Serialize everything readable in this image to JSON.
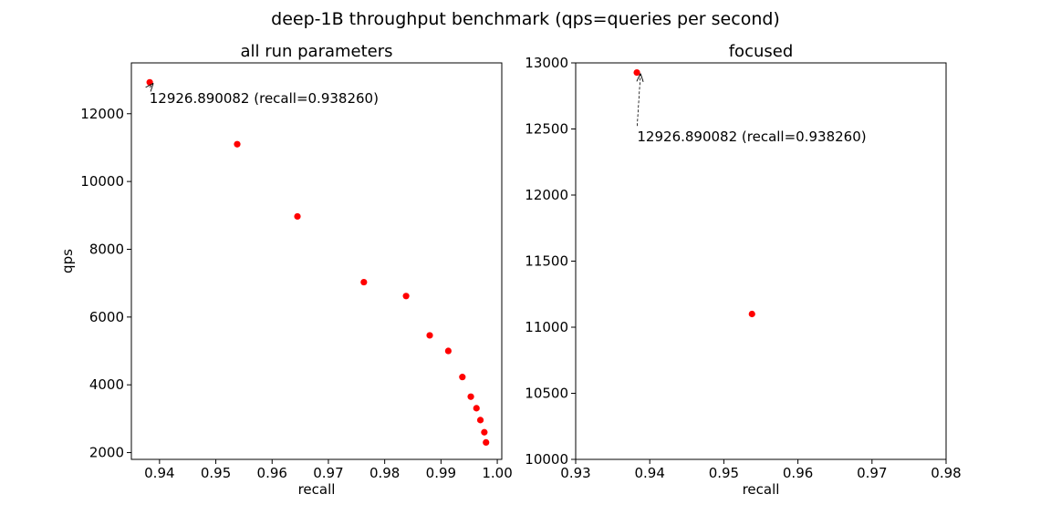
{
  "figure": {
    "title": "deep-1B throughput benchmark (qps=queries per second)"
  },
  "chart_data": [
    {
      "type": "scatter",
      "title": "all run parameters",
      "xlabel": "recall",
      "ylabel": "qps",
      "xlim": [
        0.935,
        1.0008
      ],
      "ylim": [
        1800,
        13500
      ],
      "xticks": [
        0.94,
        0.95,
        0.96,
        0.97,
        0.98,
        0.99,
        1.0
      ],
      "xtick_labels": [
        "0.94",
        "0.95",
        "0.96",
        "0.97",
        "0.98",
        "0.99",
        "1.00"
      ],
      "yticks": [
        2000,
        4000,
        6000,
        8000,
        10000,
        12000
      ],
      "ytick_labels": [
        "2000",
        "4000",
        "6000",
        "8000",
        "10000",
        "12000"
      ],
      "points": [
        {
          "x": 0.93826,
          "y": 12926.890082
        },
        {
          "x": 0.9538,
          "y": 11100
        },
        {
          "x": 0.9645,
          "y": 8970
        },
        {
          "x": 0.9763,
          "y": 7030
        },
        {
          "x": 0.9838,
          "y": 6620
        },
        {
          "x": 0.988,
          "y": 5460
        },
        {
          "x": 0.9913,
          "y": 5000
        },
        {
          "x": 0.9938,
          "y": 4230
        },
        {
          "x": 0.9953,
          "y": 3650
        },
        {
          "x": 0.9963,
          "y": 3310
        },
        {
          "x": 0.997,
          "y": 2960
        },
        {
          "x": 0.9977,
          "y": 2600
        },
        {
          "x": 0.998,
          "y": 2300
        }
      ],
      "color": "#ff0000",
      "annotation": {
        "text": "12926.890082 (recall=0.938260)",
        "target": {
          "x": 0.93826,
          "y": 12926.890082
        },
        "text_at": {
          "x": 0.9382,
          "y": 12450
        }
      }
    },
    {
      "type": "scatter",
      "title": "focused",
      "xlabel": "recall",
      "ylabel": "",
      "xlim": [
        0.93,
        0.98
      ],
      "ylim": [
        10000,
        13000
      ],
      "xticks": [
        0.93,
        0.94,
        0.95,
        0.96,
        0.97,
        0.98
      ],
      "xtick_labels": [
        "0.93",
        "0.94",
        "0.95",
        "0.96",
        "0.97",
        "0.98"
      ],
      "yticks": [
        10000,
        10500,
        11000,
        11500,
        12000,
        12500,
        13000
      ],
      "ytick_labels": [
        "10000",
        "10500",
        "11000",
        "11500",
        "12000",
        "12500",
        "13000"
      ],
      "points": [
        {
          "x": 0.93826,
          "y": 12926.890082
        },
        {
          "x": 0.9538,
          "y": 11100
        }
      ],
      "color": "#ff0000",
      "annotation": {
        "text": "12926.890082 (recall=0.938260)",
        "target": {
          "x": 0.93826,
          "y": 12926.890082
        },
        "text_at": {
          "x": 0.9383,
          "y": 12440
        }
      }
    }
  ]
}
